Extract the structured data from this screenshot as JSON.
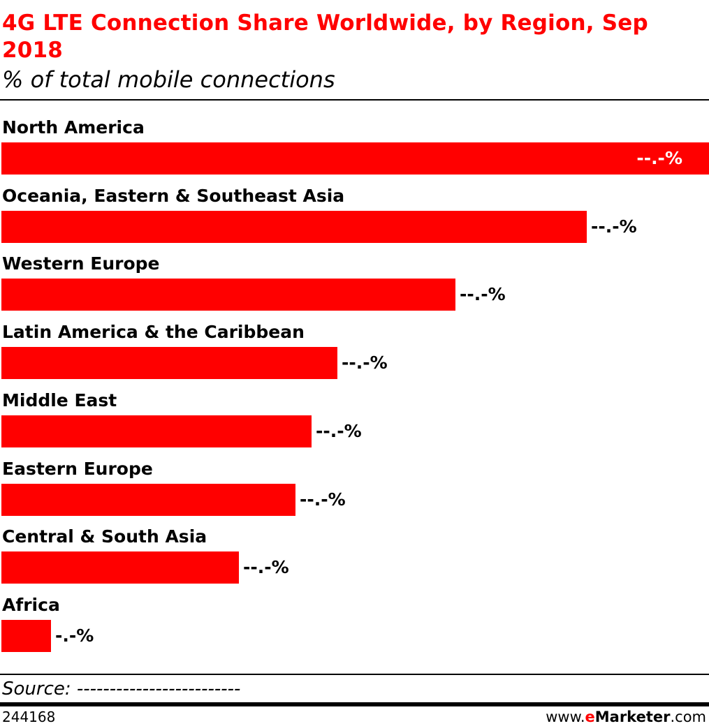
{
  "header": {
    "title": "4G LTE Connection Share Worldwide, by Region, Sep 2018",
    "subtitle": "% of total mobile connections"
  },
  "footer": {
    "source": "Source: -------------------------",
    "chart_id": "244168",
    "brand_prefix": "www.",
    "brand_e": "e",
    "brand_name": "Marketer",
    "brand_suffix": ".com"
  },
  "colors": {
    "bar": "#ff0000",
    "title": "#ff0000",
    "value_inside": "#ffffff",
    "value_outside": "#000000"
  },
  "chart_data": {
    "type": "bar",
    "orientation": "horizontal",
    "title": "4G LTE Connection Share Worldwide, by Region, Sep 2018",
    "subtitle": "% of total mobile connections",
    "categories": [
      "North America",
      "Oceania, Eastern & Southeast Asia",
      "Western Europe",
      "Latin America & the Caribbean",
      "Middle East",
      "Eastern Europe",
      "Central & South Asia",
      "Africa"
    ],
    "values": [
      100,
      82.7,
      64.2,
      47.5,
      43.8,
      41.6,
      33.6,
      7.0
    ],
    "value_labels": [
      "--.-%",
      "--.-%",
      "--.-%",
      "--.-%",
      "--.-%",
      "--.-%",
      "--.-%",
      "-.-%"
    ],
    "value_labels_inside": [
      true,
      false,
      false,
      false,
      false,
      false,
      false,
      false
    ],
    "xlim": [
      0,
      100
    ],
    "grid": false,
    "legend": "none"
  }
}
